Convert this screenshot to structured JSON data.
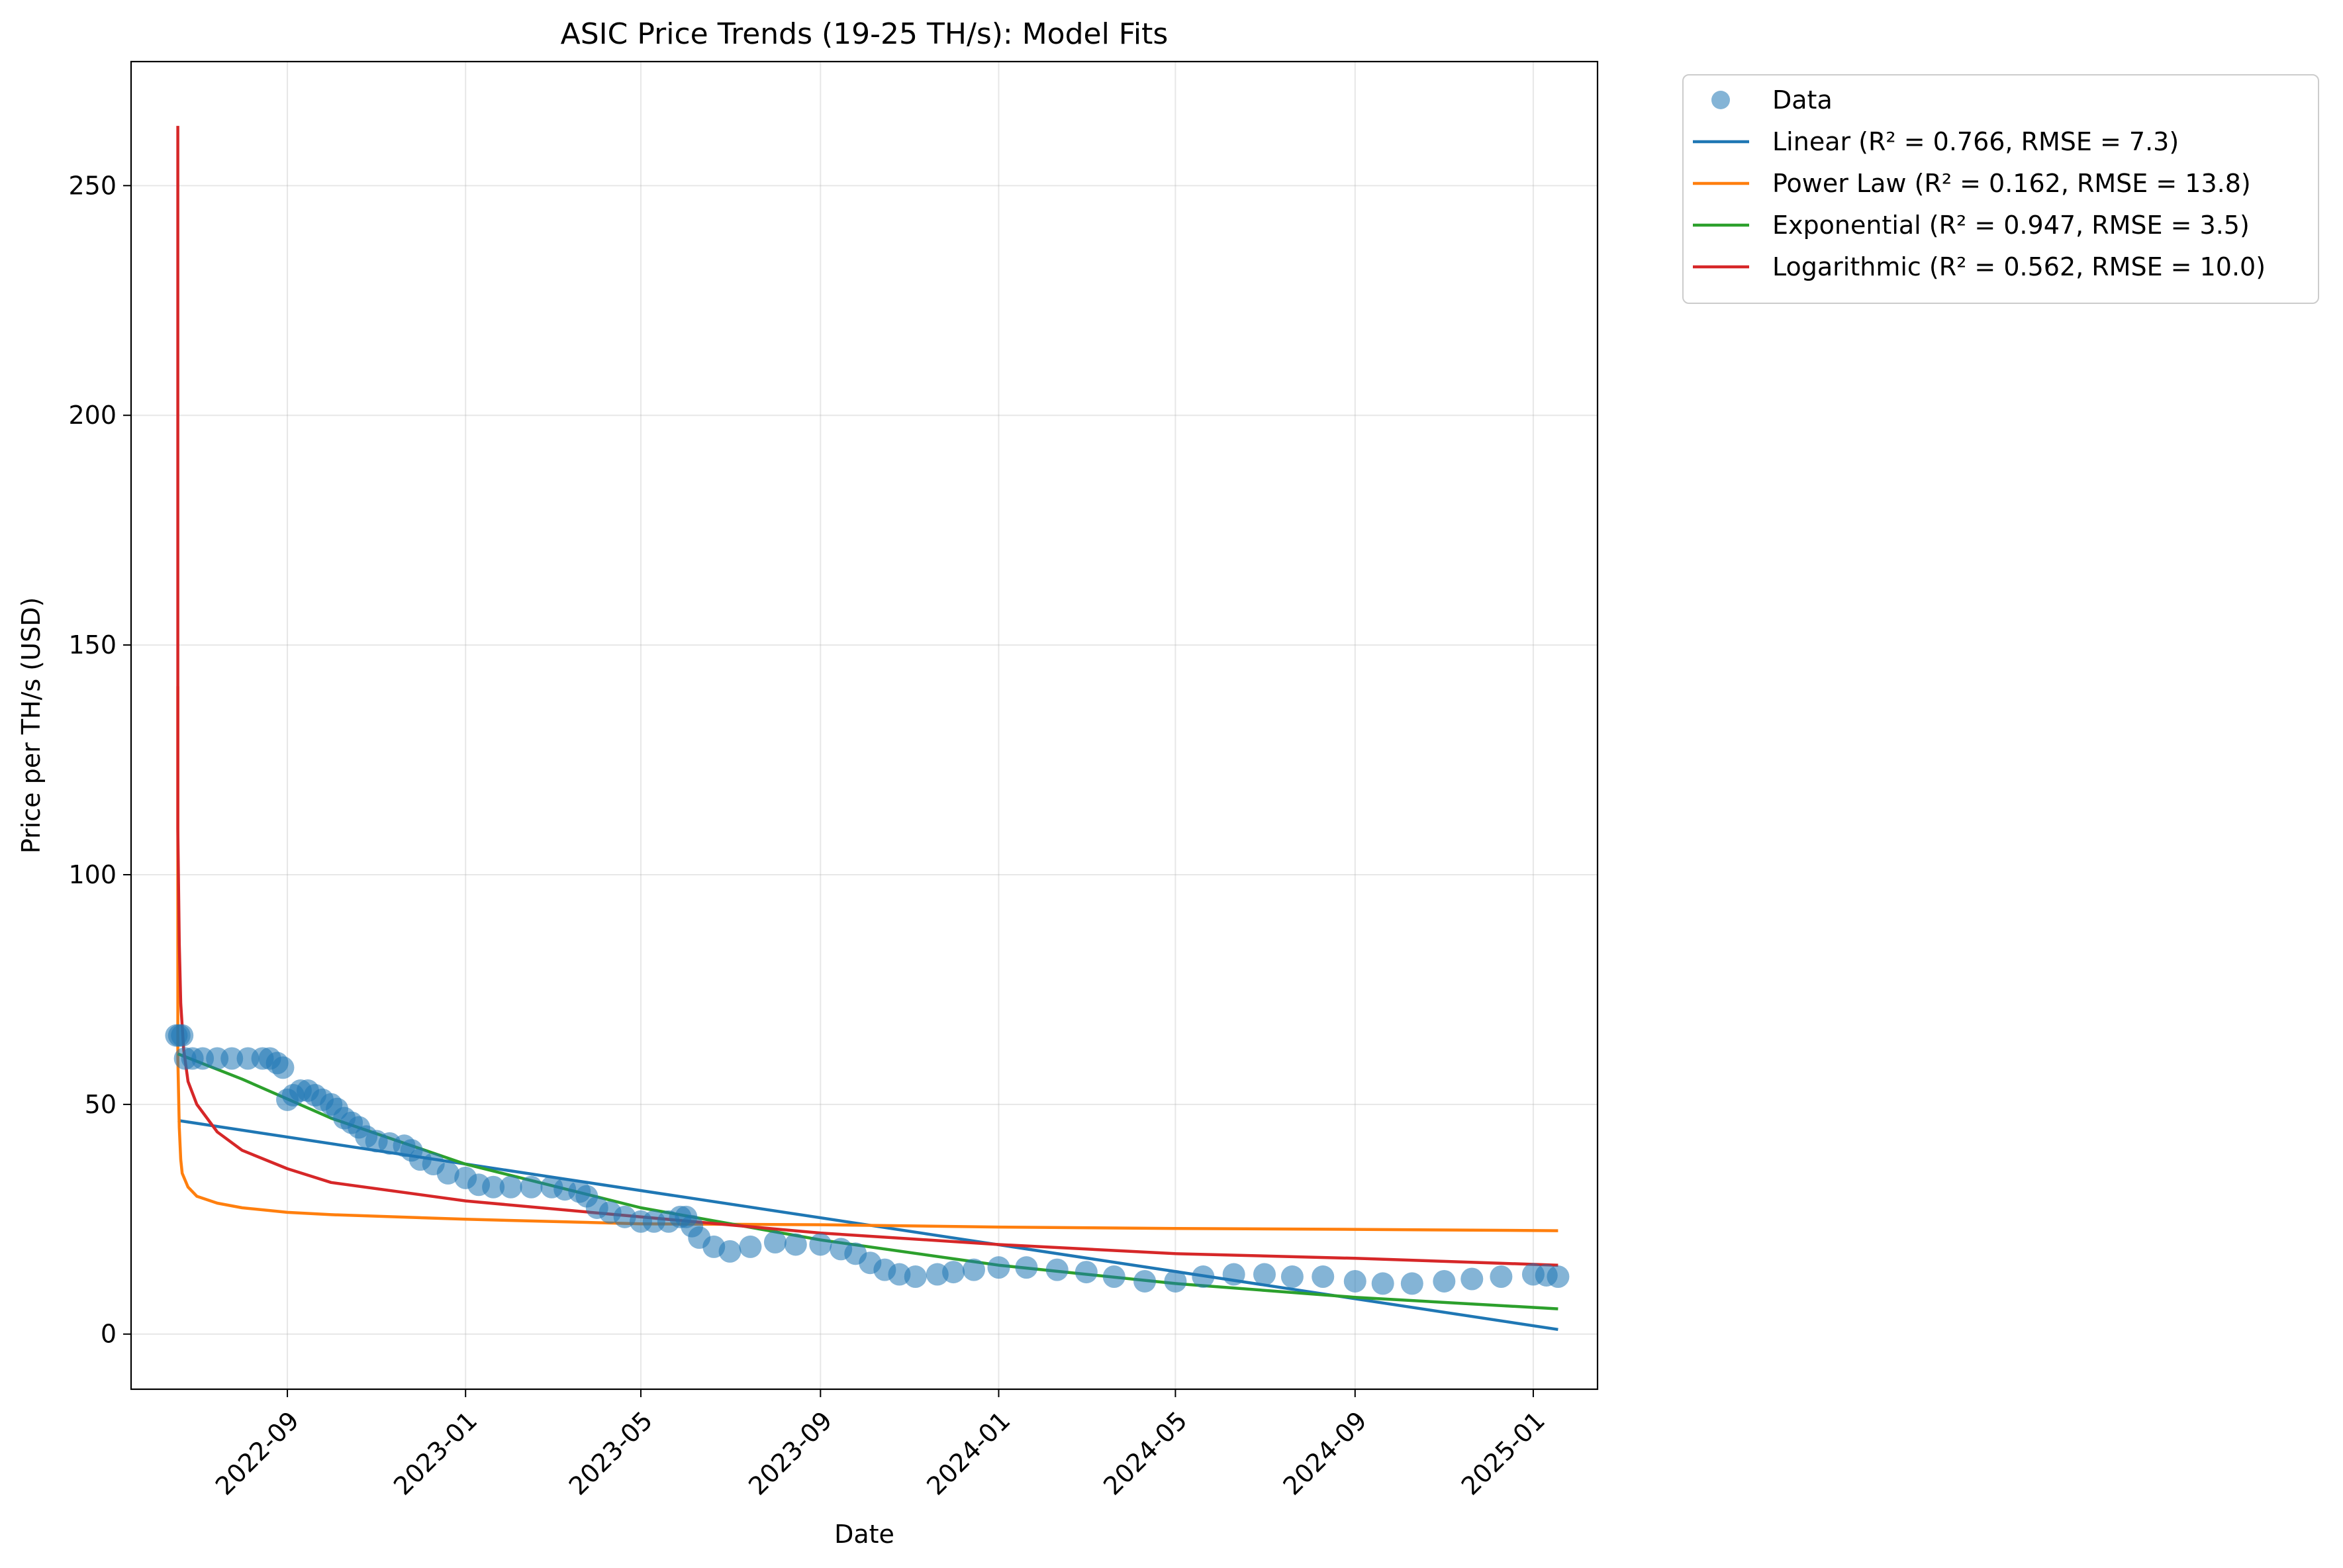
{
  "chart_data": {
    "type": "line",
    "title": "ASIC Price Trends (19-25 TH/s): Model Fits",
    "xlabel": "Date",
    "ylabel": "Price per TH/s (USD)",
    "x_type": "date",
    "xlim": [
      "2022-05-17",
      "2025-02-14"
    ],
    "ylim": [
      -12,
      277
    ],
    "xticks": [
      "2022-09",
      "2023-01",
      "2023-05",
      "2023-09",
      "2024-01",
      "2024-05",
      "2024-09",
      "2025-01"
    ],
    "yticks": [
      0,
      50,
      100,
      150,
      200,
      250
    ],
    "grid": true,
    "legend_position": "outside top-right",
    "series": [
      {
        "name": "Data",
        "kind": "scatter",
        "color": "#1f77b4",
        "x": [
          "2022-06-17",
          "2022-06-19",
          "2022-06-21",
          "2022-06-23",
          "2022-06-28",
          "2022-07-05",
          "2022-07-15",
          "2022-07-25",
          "2022-08-05",
          "2022-08-15",
          "2022-08-20",
          "2022-08-25",
          "2022-08-29",
          "2022-09-01",
          "2022-09-05",
          "2022-09-10",
          "2022-09-15",
          "2022-09-20",
          "2022-09-25",
          "2022-10-01",
          "2022-10-05",
          "2022-10-10",
          "2022-10-15",
          "2022-10-20",
          "2022-10-25",
          "2022-11-01",
          "2022-11-10",
          "2022-11-20",
          "2022-11-25",
          "2022-12-01",
          "2022-12-10",
          "2022-12-20",
          "2023-01-01",
          "2023-01-10",
          "2023-01-20",
          "2023-02-01",
          "2023-02-15",
          "2023-03-01",
          "2023-03-10",
          "2023-03-20",
          "2023-03-25",
          "2023-04-01",
          "2023-04-10",
          "2023-04-20",
          "2023-05-01",
          "2023-05-10",
          "2023-05-20",
          "2023-05-28",
          "2023-06-01",
          "2023-06-05",
          "2023-06-10",
          "2023-06-20",
          "2023-07-01",
          "2023-07-15",
          "2023-08-01",
          "2023-08-15",
          "2023-09-01",
          "2023-09-15",
          "2023-09-25",
          "2023-10-05",
          "2023-10-15",
          "2023-10-25",
          "2023-11-05",
          "2023-11-20",
          "2023-12-01",
          "2023-12-15",
          "2024-01-01",
          "2024-01-20",
          "2024-02-10",
          "2024-03-01",
          "2024-03-20",
          "2024-04-10",
          "2024-05-01",
          "2024-05-20",
          "2024-06-10",
          "2024-07-01",
          "2024-07-20",
          "2024-08-10",
          "2024-09-01",
          "2024-09-20",
          "2024-10-10",
          "2024-11-01",
          "2024-11-20",
          "2024-12-10",
          "2025-01-01",
          "2025-01-10",
          "2025-01-18"
        ],
        "y": [
          65,
          65,
          65,
          60,
          60,
          60,
          60,
          60,
          60,
          60,
          60,
          59,
          58,
          51,
          52,
          53,
          53,
          52,
          51,
          50,
          49,
          47,
          46,
          45,
          43,
          42,
          41.5,
          41,
          40,
          38,
          37,
          35,
          34,
          32.5,
          32,
          32,
          32,
          32,
          31.5,
          31,
          30,
          27.5,
          26.5,
          25.5,
          24.5,
          24.5,
          24.5,
          25.5,
          25.5,
          23.5,
          21,
          19,
          18,
          19,
          20,
          19.5,
          19.5,
          18.5,
          17.5,
          15.5,
          14,
          13,
          12.5,
          13,
          13.5,
          14,
          14.5,
          14.5,
          14,
          13.5,
          12.5,
          11.5,
          11.5,
          12.5,
          13,
          13,
          12.5,
          12.5,
          11.5,
          11,
          11,
          11.5,
          12,
          12.5,
          13,
          12.8,
          12.5
        ]
      },
      {
        "name": "Linear (R² = 0.766, RMSE = 7.3)",
        "kind": "line",
        "color": "#1f77b4",
        "x": [
          "2022-06-18",
          "2025-01-18"
        ],
        "y": [
          46.5,
          1
        ]
      },
      {
        "name": "Power Law (R² = 0.162, RMSE = 13.8)",
        "kind": "line",
        "color": "#ff7f0e",
        "x": [
          "2022-06-18",
          "2022-06-18",
          "2022-06-18",
          "2022-06-19",
          "2022-06-20",
          "2022-06-21",
          "2022-06-25",
          "2022-07-01",
          "2022-07-15",
          "2022-08-01",
          "2022-09-01",
          "2022-10-01",
          "2023-01-01",
          "2023-05-01",
          "2023-09-01",
          "2024-01-01",
          "2024-05-01",
          "2024-09-01",
          "2025-01-18"
        ],
        "y": [
          141,
          85,
          60,
          45,
          38,
          35,
          32,
          30,
          28.5,
          27.5,
          26.5,
          26,
          25,
          24,
          23.8,
          23.3,
          23,
          22.8,
          22.5
        ]
      },
      {
        "name": "Exponential (R² = 0.947, RMSE = 3.5)",
        "kind": "line",
        "color": "#2ca02c",
        "x": [
          "2022-06-18",
          "2022-08-01",
          "2022-10-01",
          "2023-01-01",
          "2023-05-01",
          "2023-09-01",
          "2024-01-01",
          "2024-05-01",
          "2024-09-01",
          "2025-01-18"
        ],
        "y": [
          61,
          55.5,
          47,
          37,
          27.5,
          20.5,
          15,
          11,
          8,
          5.5
        ]
      },
      {
        "name": "Logarithmic (R² = 0.562, RMSE = 10.0)",
        "kind": "line",
        "color": "#d62728",
        "x": [
          "2022-06-18",
          "2022-06-18",
          "2022-06-18",
          "2022-06-19",
          "2022-06-20",
          "2022-06-22",
          "2022-06-25",
          "2022-07-01",
          "2022-07-15",
          "2022-08-01",
          "2022-09-01",
          "2022-10-01",
          "2023-01-01",
          "2023-05-01",
          "2023-09-01",
          "2024-01-01",
          "2024-05-01",
          "2024-09-01",
          "2025-01-18"
        ],
        "y": [
          263,
          150,
          110,
          85,
          72,
          62,
          55,
          50,
          44,
          40,
          36,
          33,
          29,
          25.5,
          22,
          19.5,
          17.5,
          16.5,
          15
        ]
      }
    ]
  }
}
